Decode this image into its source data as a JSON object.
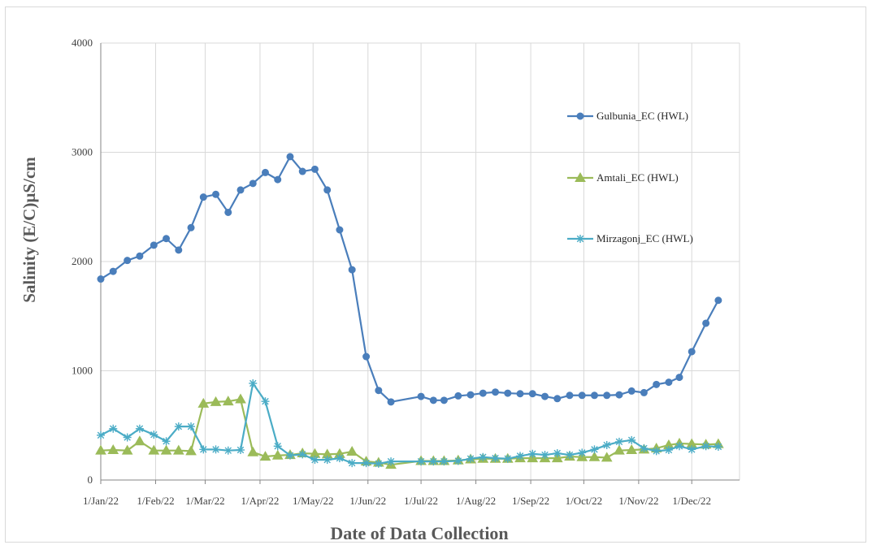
{
  "chart_data": {
    "type": "line",
    "title": "",
    "xlabel": "Date of Data Collection",
    "ylabel": "Salinity (E/C)µS/cm",
    "ylim": [
      0,
      4000
    ],
    "yticks": [
      "0",
      "1000",
      "2000",
      "3000",
      "4000"
    ],
    "xlim": [
      "2022-01-01",
      "2022-12-28"
    ],
    "xticks": [
      {
        "date": "2022-01-01",
        "label": "1/Jan/22"
      },
      {
        "date": "2022-02-01",
        "label": "1/Feb/22"
      },
      {
        "date": "2022-03-01",
        "label": "1/Mar/22"
      },
      {
        "date": "2022-04-01",
        "label": "1/Apr/22"
      },
      {
        "date": "2022-05-01",
        "label": "1/May/22"
      },
      {
        "date": "2022-06-01",
        "label": "1/Jun/22"
      },
      {
        "date": "2022-07-01",
        "label": "1/Jul/22"
      },
      {
        "date": "2022-08-01",
        "label": "1/Aug/22"
      },
      {
        "date": "2022-09-01",
        "label": "1/Sep/22"
      },
      {
        "date": "2022-10-01",
        "label": "1/Oct/22"
      },
      {
        "date": "2022-11-01",
        "label": "1/Nov/22"
      },
      {
        "date": "2022-12-01",
        "label": "1/Dec/22"
      }
    ],
    "grid": true,
    "legend_position": "right",
    "series": [
      {
        "name": "Gulbunia_EC (HWL)",
        "color": "#4a7ebb",
        "marker": "circle",
        "points": [
          [
            "2022-01-01",
            1840
          ],
          [
            "2022-01-08",
            1910
          ],
          [
            "2022-01-16",
            2010
          ],
          [
            "2022-01-23",
            2050
          ],
          [
            "2022-01-31",
            2150
          ],
          [
            "2022-02-07",
            2210
          ],
          [
            "2022-02-14",
            2105
          ],
          [
            "2022-02-21",
            2310
          ],
          [
            "2022-02-28",
            2590
          ],
          [
            "2022-03-07",
            2615
          ],
          [
            "2022-03-14",
            2450
          ],
          [
            "2022-03-21",
            2655
          ],
          [
            "2022-03-28",
            2715
          ],
          [
            "2022-04-04",
            2815
          ],
          [
            "2022-04-11",
            2750
          ],
          [
            "2022-04-18",
            2960
          ],
          [
            "2022-04-25",
            2825
          ],
          [
            "2022-05-02",
            2845
          ],
          [
            "2022-05-09",
            2655
          ],
          [
            "2022-05-16",
            2290
          ],
          [
            "2022-05-23",
            1925
          ],
          [
            "2022-05-31",
            1130
          ],
          [
            "2022-06-07",
            820
          ],
          [
            "2022-06-14",
            715
          ],
          [
            "2022-07-01",
            765
          ],
          [
            "2022-07-08",
            730
          ],
          [
            "2022-07-14",
            730
          ],
          [
            "2022-07-22",
            770
          ],
          [
            "2022-07-29",
            780
          ],
          [
            "2022-08-05",
            795
          ],
          [
            "2022-08-12",
            805
          ],
          [
            "2022-08-19",
            795
          ],
          [
            "2022-08-26",
            790
          ],
          [
            "2022-09-02",
            790
          ],
          [
            "2022-09-09",
            765
          ],
          [
            "2022-09-16",
            745
          ],
          [
            "2022-09-23",
            775
          ],
          [
            "2022-09-30",
            775
          ],
          [
            "2022-10-07",
            775
          ],
          [
            "2022-10-14",
            775
          ],
          [
            "2022-10-21",
            780
          ],
          [
            "2022-10-28",
            815
          ],
          [
            "2022-11-04",
            800
          ],
          [
            "2022-11-11",
            875
          ],
          [
            "2022-11-18",
            895
          ],
          [
            "2022-11-24",
            940
          ],
          [
            "2022-12-01",
            1175
          ],
          [
            "2022-12-09",
            1435
          ],
          [
            "2022-12-16",
            1645
          ]
        ]
      },
      {
        "name": "Amtali_EC (HWL)",
        "color": "#9bbb59",
        "marker": "triangle",
        "points": [
          [
            "2022-01-01",
            270
          ],
          [
            "2022-01-08",
            275
          ],
          [
            "2022-01-16",
            270
          ],
          [
            "2022-01-23",
            355
          ],
          [
            "2022-01-31",
            270
          ],
          [
            "2022-02-07",
            270
          ],
          [
            "2022-02-14",
            270
          ],
          [
            "2022-02-21",
            265
          ],
          [
            "2022-02-28",
            700
          ],
          [
            "2022-03-07",
            715
          ],
          [
            "2022-03-14",
            720
          ],
          [
            "2022-03-21",
            740
          ],
          [
            "2022-03-28",
            255
          ],
          [
            "2022-04-04",
            215
          ],
          [
            "2022-04-11",
            225
          ],
          [
            "2022-04-18",
            230
          ],
          [
            "2022-04-25",
            245
          ],
          [
            "2022-05-02",
            240
          ],
          [
            "2022-05-09",
            235
          ],
          [
            "2022-05-16",
            240
          ],
          [
            "2022-05-23",
            260
          ],
          [
            "2022-05-31",
            170
          ],
          [
            "2022-06-07",
            160
          ],
          [
            "2022-06-14",
            140
          ],
          [
            "2022-07-01",
            175
          ],
          [
            "2022-07-08",
            175
          ],
          [
            "2022-07-14",
            175
          ],
          [
            "2022-07-22",
            180
          ],
          [
            "2022-07-29",
            190
          ],
          [
            "2022-08-05",
            195
          ],
          [
            "2022-08-12",
            195
          ],
          [
            "2022-08-19",
            195
          ],
          [
            "2022-08-26",
            200
          ],
          [
            "2022-09-02",
            200
          ],
          [
            "2022-09-09",
            200
          ],
          [
            "2022-09-16",
            200
          ],
          [
            "2022-09-23",
            215
          ],
          [
            "2022-09-30",
            210
          ],
          [
            "2022-10-07",
            210
          ],
          [
            "2022-10-14",
            205
          ],
          [
            "2022-10-21",
            270
          ],
          [
            "2022-10-28",
            275
          ],
          [
            "2022-11-04",
            280
          ],
          [
            "2022-11-11",
            290
          ],
          [
            "2022-11-18",
            320
          ],
          [
            "2022-11-24",
            335
          ],
          [
            "2022-12-01",
            330
          ],
          [
            "2022-12-09",
            325
          ],
          [
            "2022-12-16",
            330
          ]
        ]
      },
      {
        "name": "Mirzagonj_EC (HWL)",
        "color": "#4bacc6",
        "marker": "star",
        "points": [
          [
            "2022-01-01",
            410
          ],
          [
            "2022-01-08",
            470
          ],
          [
            "2022-01-16",
            390
          ],
          [
            "2022-01-23",
            470
          ],
          [
            "2022-01-31",
            415
          ],
          [
            "2022-02-07",
            355
          ],
          [
            "2022-02-14",
            490
          ],
          [
            "2022-02-21",
            490
          ],
          [
            "2022-02-28",
            280
          ],
          [
            "2022-03-07",
            280
          ],
          [
            "2022-03-14",
            270
          ],
          [
            "2022-03-21",
            275
          ],
          [
            "2022-03-28",
            885
          ],
          [
            "2022-04-04",
            720
          ],
          [
            "2022-04-11",
            310
          ],
          [
            "2022-04-18",
            225
          ],
          [
            "2022-04-25",
            235
          ],
          [
            "2022-05-02",
            185
          ],
          [
            "2022-05-09",
            185
          ],
          [
            "2022-05-16",
            200
          ],
          [
            "2022-05-23",
            155
          ],
          [
            "2022-05-31",
            155
          ],
          [
            "2022-06-07",
            150
          ],
          [
            "2022-06-14",
            170
          ],
          [
            "2022-07-01",
            170
          ],
          [
            "2022-07-08",
            170
          ],
          [
            "2022-07-14",
            170
          ],
          [
            "2022-07-22",
            175
          ],
          [
            "2022-07-29",
            195
          ],
          [
            "2022-08-05",
            210
          ],
          [
            "2022-08-12",
            200
          ],
          [
            "2022-08-19",
            195
          ],
          [
            "2022-08-26",
            220
          ],
          [
            "2022-09-02",
            240
          ],
          [
            "2022-09-09",
            230
          ],
          [
            "2022-09-16",
            245
          ],
          [
            "2022-09-23",
            230
          ],
          [
            "2022-09-30",
            250
          ],
          [
            "2022-10-07",
            280
          ],
          [
            "2022-10-14",
            320
          ],
          [
            "2022-10-21",
            350
          ],
          [
            "2022-10-28",
            365
          ],
          [
            "2022-11-04",
            290
          ],
          [
            "2022-11-11",
            265
          ],
          [
            "2022-11-18",
            275
          ],
          [
            "2022-11-24",
            310
          ],
          [
            "2022-12-01",
            280
          ],
          [
            "2022-12-09",
            310
          ],
          [
            "2022-12-16",
            305
          ]
        ]
      }
    ]
  }
}
